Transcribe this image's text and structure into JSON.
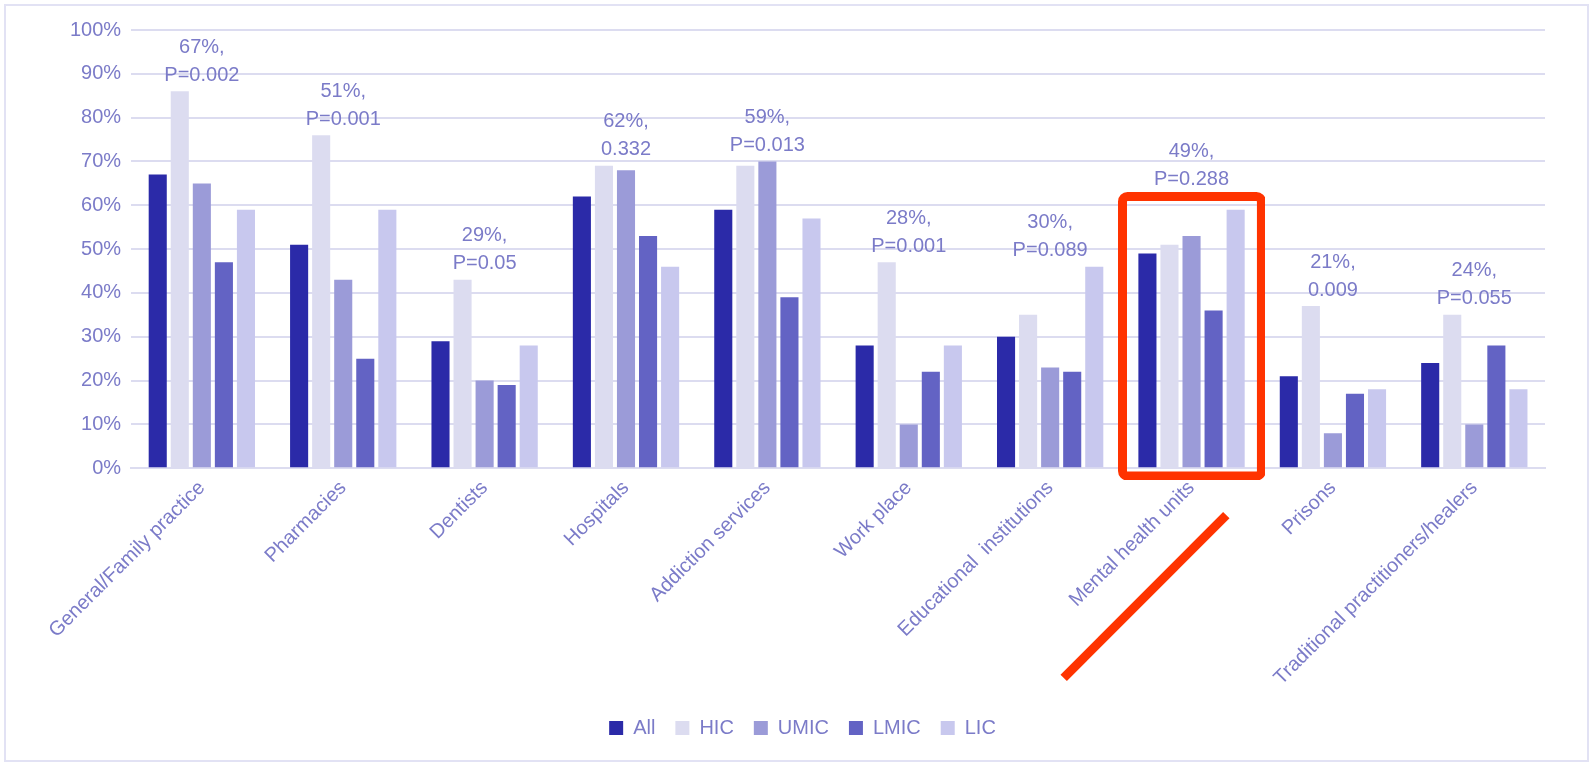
{
  "chart_data": {
    "type": "bar",
    "categories": [
      "General/Family practice",
      "Pharmacies",
      "Dentists",
      "Hospitals",
      "Addiction services",
      "Work place",
      "Educational  institutions",
      "Mental health units",
      "Prisons",
      "Traditional practitioners/healers"
    ],
    "series": [
      {
        "name": "All",
        "color": "#2b2aa8",
        "values": [
          67,
          51,
          29,
          62,
          59,
          28,
          30,
          49,
          21,
          24
        ]
      },
      {
        "name": "HIC",
        "color": "#dcdcf0",
        "values": [
          86,
          76,
          43,
          69,
          69,
          47,
          35,
          51,
          37,
          35
        ]
      },
      {
        "name": "UMIC",
        "color": "#9b9bd8",
        "values": [
          65,
          43,
          20,
          68,
          70,
          10,
          23,
          53,
          8,
          10
        ]
      },
      {
        "name": "LMIC",
        "color": "#6363c4",
        "values": [
          47,
          25,
          19,
          53,
          39,
          22,
          22,
          36,
          17,
          28
        ]
      },
      {
        "name": "LIC",
        "color": "#c8c8ee",
        "values": [
          59,
          59,
          28,
          46,
          57,
          28,
          46,
          59,
          18,
          18
        ]
      }
    ],
    "ylim": [
      0,
      100
    ],
    "yticks": [
      {
        "value": 0,
        "label": "0%"
      },
      {
        "value": 10,
        "label": "10%"
      },
      {
        "value": 20,
        "label": "20%"
      },
      {
        "value": 30,
        "label": "30%"
      },
      {
        "value": 40,
        "label": "40%"
      },
      {
        "value": 50,
        "label": "50%"
      },
      {
        "value": 60,
        "label": "60%"
      },
      {
        "value": 70,
        "label": "70%"
      },
      {
        "value": 80,
        "label": "80%"
      },
      {
        "value": 90,
        "label": "90%"
      },
      {
        "value": 100,
        "label": "100%"
      }
    ],
    "grid": "y",
    "legend": "bottom",
    "annotations": [
      "67%,\nP=0.002",
      "51%,\nP=0.001",
      "29%,\nP=0.05",
      "62%,\n0.332",
      "59%,\nP=0.013",
      "28%,\nP=0.001",
      "30%,\nP=0.089",
      "49%,\nP=0.288",
      "21%,\n0.009",
      "24%,\nP=0.055"
    ]
  }
}
